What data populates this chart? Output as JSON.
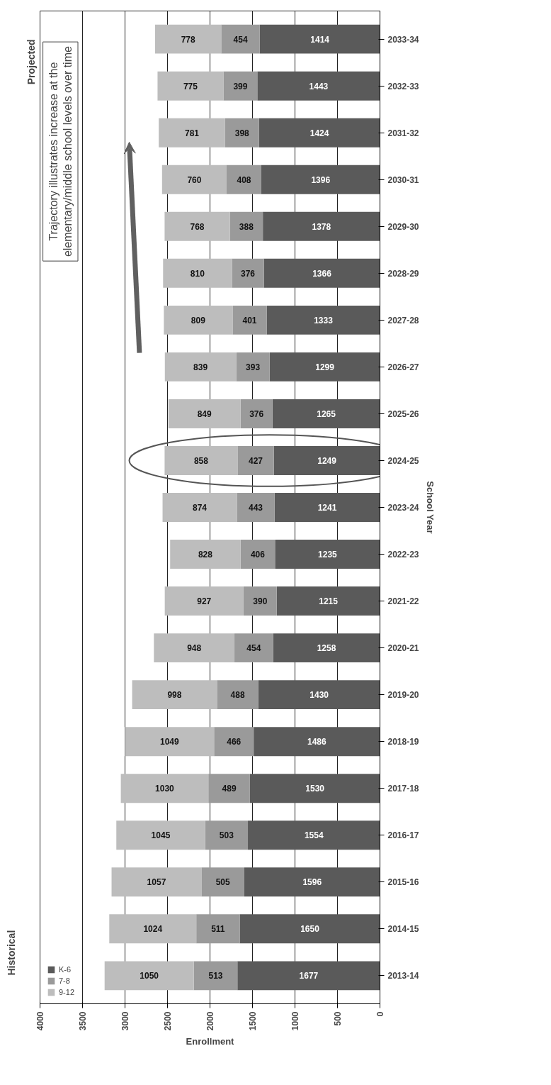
{
  "chart_data": {
    "type": "bar",
    "orientation": "horizontal",
    "stacked": true,
    "categories": [
      "2033-34",
      "2032-33",
      "2031-32",
      "2030-31",
      "2029-30",
      "2028-29",
      "2027-28",
      "2026-27",
      "2025-26",
      "2024-25",
      "2023-24",
      "2022-23",
      "2021-22",
      "2020-21",
      "2019-20",
      "2018-19",
      "2017-18",
      "2016-17",
      "2015-16",
      "2014-15",
      "2013-14"
    ],
    "series": [
      {
        "name": "K-6",
        "color": "#5a5a5a",
        "values": [
          1414,
          1443,
          1424,
          1396,
          1378,
          1366,
          1333,
          1299,
          1265,
          1249,
          1241,
          1235,
          1215,
          1258,
          1430,
          1486,
          1530,
          1554,
          1596,
          1650,
          1677
        ]
      },
      {
        "name": "7-8",
        "color": "#9a9a9a",
        "values": [
          454,
          399,
          398,
          408,
          388,
          376,
          401,
          393,
          376,
          427,
          443,
          406,
          390,
          454,
          488,
          466,
          489,
          503,
          505,
          511,
          513
        ]
      },
      {
        "name": "9-12",
        "color": "#bdbdbd",
        "values": [
          778,
          775,
          781,
          760,
          768,
          810,
          809,
          839,
          849,
          858,
          874,
          828,
          927,
          948,
          998,
          1049,
          1030,
          1045,
          1057,
          1024,
          1050
        ]
      }
    ],
    "xlim": [
      4000,
      0
    ],
    "xticks": [
      4000,
      3500,
      3000,
      2500,
      2000,
      1500,
      1000,
      500,
      0
    ],
    "xlabel": "Enrollment",
    "ylabel": "School Year",
    "grid": "x",
    "legend": "bottom left",
    "data_labels": true,
    "annotations": [
      "Projected",
      "Historical",
      "Trajectory illustrates increase at the\nelementary/middle school levels over time"
    ]
  }
}
